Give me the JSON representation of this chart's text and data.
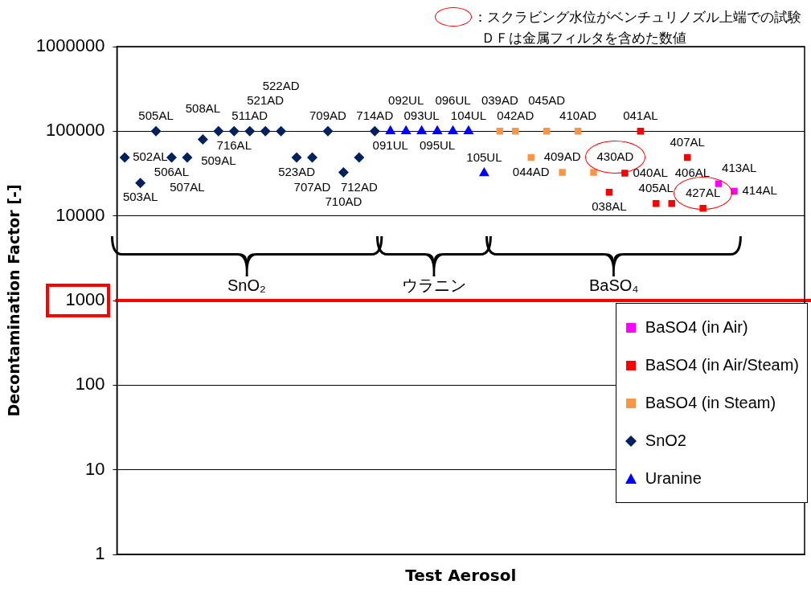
{
  "chart_data": {
    "type": "scatter",
    "xlabel": "Test Aerosol",
    "ylabel": "Decontamination Factor [-]",
    "annotations": [
      "：スクラビング水位がベンチュリノズル上端での試験",
      "ＤＦは金属フィルタを含めた数値",
      "SnO₂",
      "ウラニン",
      "BaSO₄",
      "502AL",
      "503AL",
      "505AL",
      "506AL",
      "507AL",
      "508AL",
      "509AL",
      "716AL",
      "511AD",
      "521AD",
      "522AD",
      "523AD",
      "707AD",
      "709AD",
      "710AD",
      "712AD",
      "714AD",
      "091UL",
      "092UL",
      "093UL",
      "095UL",
      "096UL",
      "104UL",
      "105UL",
      "039AD",
      "042AD",
      "044AD",
      "045AD",
      "409AD",
      "410AD",
      "430AD",
      "038AL",
      "040AL",
      "041AL",
      "405AL",
      "406AL",
      "407AL",
      "427AL",
      "413AL",
      "414AL"
    ],
    "categories": [
      null,
      null,
      null,
      null,
      null,
      null,
      null,
      null,
      null,
      null,
      null,
      null,
      null,
      null,
      null,
      null,
      null,
      null,
      null,
      null,
      null,
      null,
      null,
      null,
      null,
      null,
      null,
      null,
      null,
      null,
      null,
      null,
      null,
      null,
      null,
      null,
      null,
      null,
      null,
      null,
      null,
      null,
      null,
      null
    ],
    "ylim": [
      1,
      1000000
    ],
    "yticks": [
      1,
      10,
      100,
      1000,
      10000,
      100000,
      1000000
    ],
    "log": "y",
    "grid": "y",
    "legend": "bottom right",
    "tick_labels": "y",
    "ref_lines": [
      {
        "axis": "y",
        "value": 1000,
        "color": "#ff0000"
      }
    ],
    "series": [
      {
        "name": "BaSO4 (in Air)",
        "color": "#ff00ff",
        "marker": "square",
        "values": [
          null,
          null,
          null,
          null,
          null,
          null,
          null,
          null,
          null,
          null,
          null,
          null,
          null,
          null,
          null,
          null,
          null,
          null,
          null,
          null,
          null,
          null,
          null,
          null,
          null,
          null,
          null,
          null,
          null,
          null,
          null,
          null,
          null,
          null,
          null,
          null,
          null,
          null,
          24000,
          19500,
          null,
          null,
          null,
          null
        ]
      },
      {
        "name": "BaSO4 (in Air/Steam)",
        "color": "#ff0000",
        "marker": "square",
        "values": [
          null,
          null,
          null,
          null,
          null,
          null,
          null,
          null,
          null,
          null,
          null,
          null,
          null,
          null,
          null,
          null,
          null,
          null,
          null,
          null,
          null,
          null,
          null,
          null,
          null,
          null,
          null,
          null,
          null,
          null,
          null,
          19000,
          32000,
          100000,
          14000,
          14000,
          49000,
          12300,
          null,
          null,
          null,
          null,
          null,
          null
        ]
      },
      {
        "name": "BaSO4 (in Steam)",
        "color": "#f79646",
        "marker": "square",
        "values": [
          null,
          null,
          null,
          null,
          null,
          null,
          null,
          null,
          null,
          null,
          null,
          null,
          null,
          null,
          null,
          null,
          null,
          null,
          null,
          null,
          null,
          null,
          null,
          null,
          100000,
          100000,
          49000,
          100000,
          32700,
          100000,
          32700,
          null,
          null,
          null,
          null,
          null,
          null,
          null,
          null,
          null,
          null,
          null,
          null,
          null
        ]
      },
      {
        "name": "SnO2",
        "color": "#002060",
        "marker": "diamond",
        "values": [
          49000,
          24500,
          100000,
          49000,
          49000,
          80000,
          100000,
          100000,
          100000,
          100000,
          100000,
          49000,
          49000,
          100000,
          32700,
          49000,
          100000,
          null,
          null,
          null,
          null,
          null,
          null,
          null,
          null,
          null,
          null,
          null,
          null,
          null,
          null,
          null,
          null,
          null,
          null,
          null,
          null,
          null,
          null,
          null,
          null,
          null,
          null,
          null
        ]
      },
      {
        "name": "Uranine",
        "color": "#0000ff",
        "marker": "triangle",
        "values": [
          null,
          null,
          null,
          null,
          null,
          null,
          null,
          null,
          null,
          null,
          null,
          null,
          null,
          null,
          null,
          null,
          null,
          100000,
          100000,
          100000,
          100000,
          100000,
          100000,
          32000,
          null,
          null,
          null,
          null,
          null,
          null,
          null,
          null,
          null,
          null,
          null,
          null,
          null,
          null,
          null,
          null,
          null,
          null,
          null,
          null
        ]
      }
    ]
  }
}
